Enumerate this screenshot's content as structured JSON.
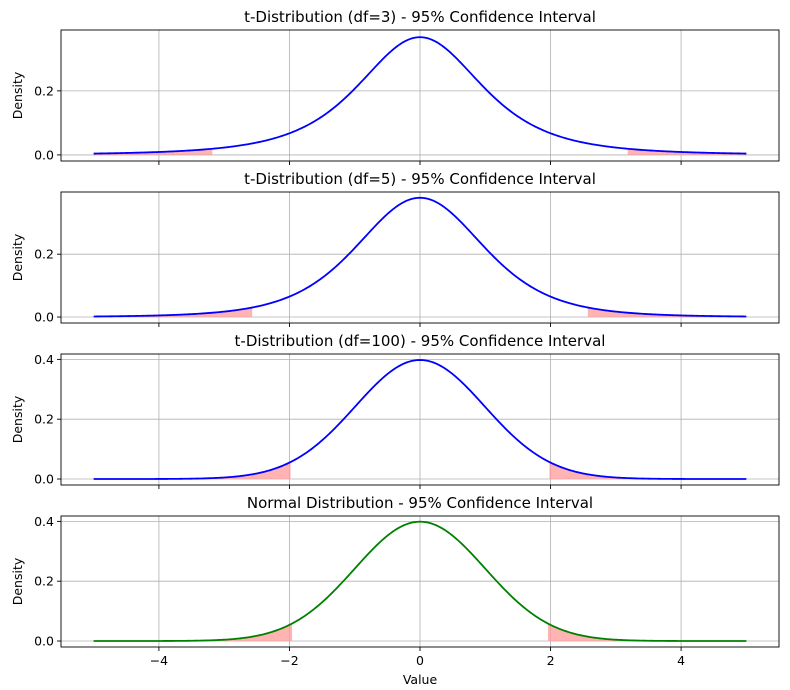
{
  "figure": {
    "xlabel": "Value"
  },
  "chart_data": [
    {
      "type": "line",
      "title": "t-Distribution (df=3) - 95% Confidence Interval",
      "xlabel": "",
      "ylabel": "Density",
      "xlim": [
        -5.5,
        5.5
      ],
      "ylim": [
        -0.019,
        0.39
      ],
      "xticks": [
        -4,
        -2,
        0,
        2,
        4
      ],
      "xtick_labels": [
        "−4",
        "−2",
        "0",
        "2",
        "4"
      ],
      "show_xtick_labels": false,
      "yticks": [
        0.0,
        0.2
      ],
      "ytick_labels": [
        "0.0",
        "0.2"
      ],
      "grid": true,
      "distribution": "t",
      "df": 3,
      "x_range": [
        -5,
        5
      ],
      "line_color": "#0000ff",
      "critical_value": 3.182,
      "shade_color": "#ff9999",
      "shaded_regions": [
        [
          -5,
          -3.182
        ],
        [
          3.182,
          5
        ]
      ]
    },
    {
      "type": "line",
      "title": "t-Distribution (df=5) - 95% Confidence Interval",
      "xlabel": "",
      "ylabel": "Density",
      "xlim": [
        -5.5,
        5.5
      ],
      "ylim": [
        -0.019,
        0.398
      ],
      "xticks": [
        -4,
        -2,
        0,
        2,
        4
      ],
      "xtick_labels": [
        "−4",
        "−2",
        "0",
        "2",
        "4"
      ],
      "show_xtick_labels": false,
      "yticks": [
        0.0,
        0.2
      ],
      "ytick_labels": [
        "0.0",
        "0.2"
      ],
      "grid": true,
      "distribution": "t",
      "df": 5,
      "x_range": [
        -5,
        5
      ],
      "line_color": "#0000ff",
      "critical_value": 2.571,
      "shade_color": "#ff9999",
      "shaded_regions": [
        [
          -5,
          -2.571
        ],
        [
          2.571,
          5
        ]
      ]
    },
    {
      "type": "line",
      "title": "t-Distribution (df=100) - 95% Confidence Interval",
      "xlabel": "",
      "ylabel": "Density",
      "xlim": [
        -5.5,
        5.5
      ],
      "ylim": [
        -0.02,
        0.418
      ],
      "xticks": [
        -4,
        -2,
        0,
        2,
        4
      ],
      "xtick_labels": [
        "−4",
        "−2",
        "0",
        "2",
        "4"
      ],
      "show_xtick_labels": false,
      "yticks": [
        0.0,
        0.2,
        0.4
      ],
      "ytick_labels": [
        "0.0",
        "0.2",
        "0.4"
      ],
      "grid": true,
      "distribution": "t",
      "df": 100,
      "x_range": [
        -5,
        5
      ],
      "line_color": "#0000ff",
      "critical_value": 1.984,
      "shade_color": "#ff9999",
      "shaded_regions": [
        [
          -5,
          -1.984
        ],
        [
          1.984,
          5
        ]
      ]
    },
    {
      "type": "line",
      "title": "Normal Distribution - 95% Confidence Interval",
      "xlabel": "Value",
      "ylabel": "Density",
      "xlim": [
        -5.5,
        5.5
      ],
      "ylim": [
        -0.02,
        0.418
      ],
      "xticks": [
        -4,
        -2,
        0,
        2,
        4
      ],
      "xtick_labels": [
        "−4",
        "−2",
        "0",
        "2",
        "4"
      ],
      "show_xtick_labels": true,
      "yticks": [
        0.0,
        0.2,
        0.4
      ],
      "ytick_labels": [
        "0.0",
        "0.2",
        "0.4"
      ],
      "grid": true,
      "distribution": "normal",
      "df": null,
      "x_range": [
        -5,
        5
      ],
      "line_color": "#008000",
      "critical_value": 1.96,
      "shade_color": "#ff9999",
      "shaded_regions": [
        [
          -5,
          -1.96
        ],
        [
          1.96,
          5
        ]
      ]
    }
  ]
}
